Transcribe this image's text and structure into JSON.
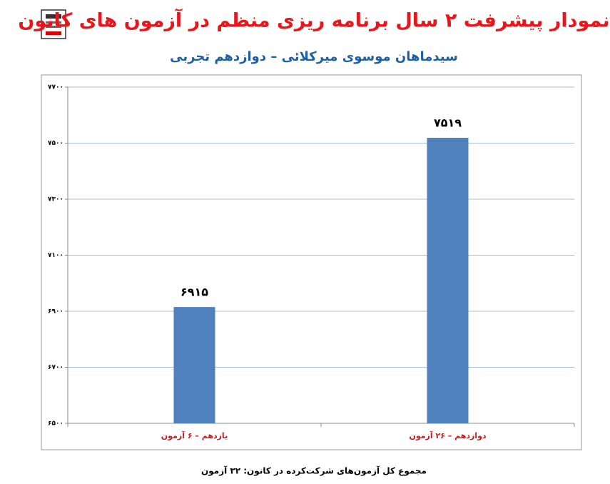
{
  "chart_data": {
    "type": "bar",
    "title": "نمودار پیشرفت ۲ سال برنامه ریزی منظم در آزمون های کانون",
    "subtitle": "سیدماهان موسوی میرکلائی – دوازدهم تجربی",
    "categories": [
      "یازدهم – ۶ آزمون",
      "دوازدهم – ۲۶ آزمون"
    ],
    "values": [
      6915,
      7519
    ],
    "value_labels": [
      "۶۹۱۵",
      "۷۵۱۹"
    ],
    "color": "#4f81bd",
    "ylim": [
      6500,
      7700
    ],
    "yticks": [
      {
        "value": 6500,
        "label": "۶۵۰۰"
      },
      {
        "value": 6700,
        "label": "۶۷۰۰"
      },
      {
        "value": 6900,
        "label": "۶۹۰۰"
      },
      {
        "value": 7100,
        "label": "۷۱۰۰"
      },
      {
        "value": 7300,
        "label": "۷۳۰۰"
      },
      {
        "value": 7500,
        "label": "۷۵۰۰"
      },
      {
        "value": 7700,
        "label": "۷۷۰۰"
      }
    ],
    "grid": true,
    "footnote": "مجموع کل آزمون‌های شرکت‌کرده در کانون: ۳۲ آزمون"
  }
}
